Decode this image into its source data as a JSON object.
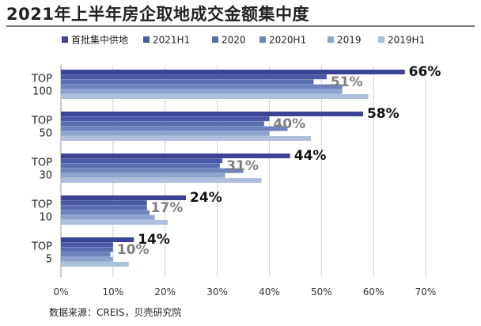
{
  "title": "2021年上半年房企取地成交金额集中度",
  "source": "数据来源：CREIS，贝壳研究院",
  "chart_data": {
    "type": "bar",
    "orientation": "horizontal",
    "xlim": [
      0,
      70
    ],
    "x_ticks": [
      "0%",
      "10%",
      "20%",
      "30%",
      "40%",
      "50%",
      "60%",
      "70%"
    ],
    "grid": true,
    "legend_position": "top",
    "categories": [
      {
        "line1": "TOP",
        "line2": "100"
      },
      {
        "line1": "TOP",
        "line2": "50"
      },
      {
        "line1": "TOP",
        "line2": "30"
      },
      {
        "line1": "TOP",
        "line2": "10"
      },
      {
        "line1": "TOP",
        "line2": "5"
      }
    ],
    "series": [
      {
        "name": "首批集中供地",
        "color": "#3d4394",
        "values": [
          66,
          58,
          44,
          24,
          14
        ]
      },
      {
        "name": "2021H1",
        "color": "#4a58a6",
        "values": [
          51,
          40,
          31,
          16.5,
          10
        ]
      },
      {
        "name": "2020",
        "color": "#5a6db0",
        "values": [
          48.5,
          39,
          30.5,
          16.5,
          10
        ]
      },
      {
        "name": "2020H1",
        "color": "#6e83bd",
        "values": [
          54,
          43.5,
          35,
          17,
          9.5
        ]
      },
      {
        "name": "2019",
        "color": "#8ea4cf",
        "values": [
          54,
          40,
          31.5,
          18,
          10
        ]
      },
      {
        "name": "2019H1",
        "color": "#aebfde",
        "values": [
          59,
          48,
          38.5,
          20.5,
          13
        ]
      }
    ],
    "data_labels": [
      {
        "category": 0,
        "primary": "66%",
        "secondary": "51%"
      },
      {
        "category": 1,
        "primary": "58%",
        "secondary": "40%"
      },
      {
        "category": 2,
        "primary": "44%",
        "secondary": "31%"
      },
      {
        "category": 3,
        "primary": "24%",
        "secondary": "17%"
      },
      {
        "category": 4,
        "primary": "14%",
        "secondary": "10%"
      }
    ]
  }
}
